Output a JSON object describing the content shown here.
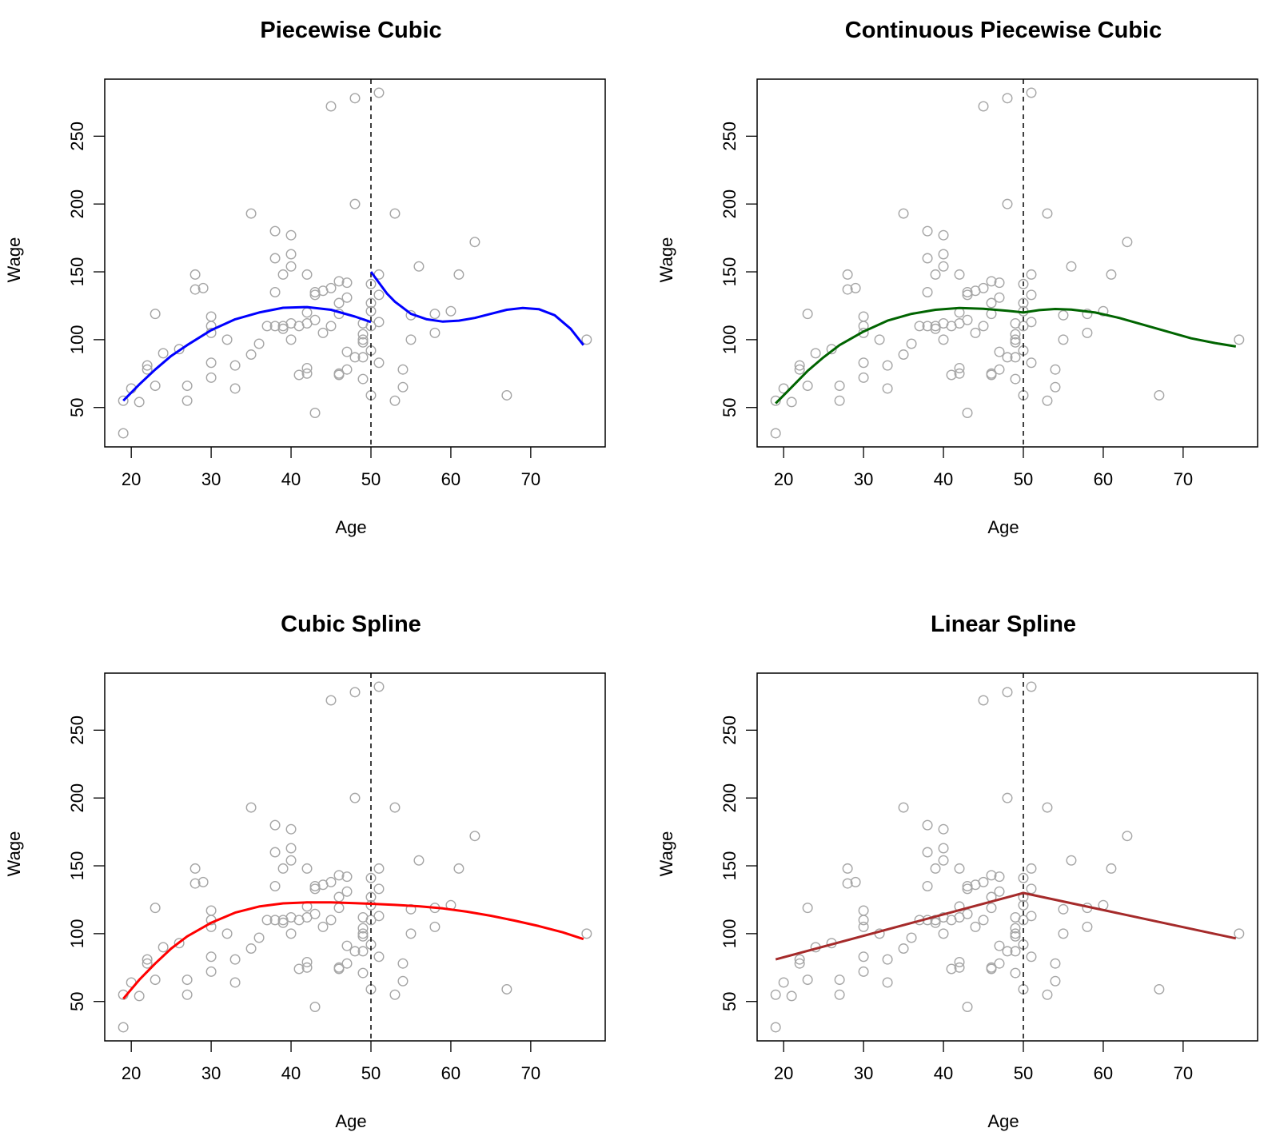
{
  "figure": {
    "point_color": "#a6a6a6",
    "knot_line_style": "dashed"
  },
  "chart_data": [
    {
      "type": "scatter",
      "title": "Piecewise Cubic",
      "xlabel": "Age",
      "ylabel": "Wage",
      "xlim": [
        16.68,
        79.32
      ],
      "ylim": [
        20.96,
        292.04
      ],
      "xticks": [
        20,
        30,
        40,
        50,
        60,
        70
      ],
      "yticks": [
        50,
        100,
        150,
        200,
        250
      ],
      "grid": false,
      "knot": 50,
      "fit": {
        "name": "piecewise cubic",
        "color": "#0000ff",
        "segments": [
          [
            [
              19,
              55
            ],
            [
              21,
              67
            ],
            [
              23,
              78
            ],
            [
              25,
              88
            ],
            [
              27,
              96
            ],
            [
              30,
              107
            ],
            [
              33,
              115
            ],
            [
              36,
              120
            ],
            [
              39,
              123.5
            ],
            [
              42,
              124
            ],
            [
              45,
              122
            ],
            [
              48,
              117
            ],
            [
              50,
              113
            ]
          ],
          [
            [
              50,
              150
            ],
            [
              51,
              142
            ],
            [
              52,
              134
            ],
            [
              53,
              128
            ],
            [
              55,
              119
            ],
            [
              57,
              115
            ],
            [
              59,
              113.3
            ],
            [
              61,
              114
            ],
            [
              63,
              116
            ],
            [
              65,
              119
            ],
            [
              67,
              122
            ],
            [
              69,
              123.4
            ],
            [
              71,
              122.5
            ],
            [
              73,
              118
            ],
            [
              75,
              108
            ],
            [
              76.6,
              96
            ]
          ]
        ]
      }
    },
    {
      "type": "scatter",
      "title": "Continuous Piecewise Cubic",
      "xlabel": "Age",
      "ylabel": "Wage",
      "xlim": [
        16.68,
        79.32
      ],
      "ylim": [
        20.96,
        292.04
      ],
      "xticks": [
        20,
        30,
        40,
        50,
        60,
        70
      ],
      "yticks": [
        50,
        100,
        150,
        200,
        250
      ],
      "grid": false,
      "knot": 50,
      "fit": {
        "name": "continuous piecewise cubic",
        "color": "#006400",
        "segments": [
          [
            [
              19,
              53
            ],
            [
              21,
              65
            ],
            [
              23,
              77
            ],
            [
              25,
              87
            ],
            [
              27,
              96
            ],
            [
              30,
              106
            ],
            [
              33,
              114
            ],
            [
              36,
              119
            ],
            [
              39,
              122
            ],
            [
              42,
              123.3
            ],
            [
              45,
              122.8
            ],
            [
              48,
              121.3
            ],
            [
              50,
              120
            ],
            [
              52,
              121.8
            ],
            [
              54,
              122.6
            ],
            [
              56,
              122.2
            ],
            [
              59,
              120
            ],
            [
              62,
              116
            ],
            [
              65,
              111
            ],
            [
              68,
              106
            ],
            [
              71,
              101
            ],
            [
              74,
              97.5
            ],
            [
              76.6,
              95
            ]
          ]
        ]
      }
    },
    {
      "type": "scatter",
      "title": "Cubic Spline",
      "xlabel": "Age",
      "ylabel": "Wage",
      "xlim": [
        16.68,
        79.32
      ],
      "ylim": [
        20.96,
        292.04
      ],
      "xticks": [
        20,
        30,
        40,
        50,
        60,
        70
      ],
      "yticks": [
        50,
        100,
        150,
        200,
        250
      ],
      "grid": false,
      "knot": 50,
      "fit": {
        "name": "cubic spline",
        "color": "#ff0000",
        "segments": [
          [
            [
              19,
              52
            ],
            [
              21,
              66
            ],
            [
              23,
              78
            ],
            [
              25,
              89
            ],
            [
              27,
              98
            ],
            [
              30,
              108
            ],
            [
              33,
              115.5
            ],
            [
              36,
              120
            ],
            [
              39,
              122.3
            ],
            [
              42,
              123
            ],
            [
              45,
              123
            ],
            [
              48,
              122.5
            ],
            [
              50,
              122
            ],
            [
              53,
              121.2
            ],
            [
              56,
              120.2
            ],
            [
              59,
              118.6
            ],
            [
              62,
              116.2
            ],
            [
              65,
              113.2
            ],
            [
              68,
              109.6
            ],
            [
              71,
              105.6
            ],
            [
              74,
              101
            ],
            [
              76.6,
              96
            ]
          ]
        ]
      }
    },
    {
      "type": "scatter",
      "title": "Linear Spline",
      "xlabel": "Age",
      "ylabel": "Wage",
      "xlim": [
        16.68,
        79.32
      ],
      "ylim": [
        20.96,
        292.04
      ],
      "xticks": [
        20,
        30,
        40,
        50,
        60,
        70
      ],
      "yticks": [
        50,
        100,
        150,
        200,
        250
      ],
      "grid": false,
      "knot": 50,
      "fit": {
        "name": "linear spline",
        "color": "#a52a2a",
        "segments": [
          [
            [
              19,
              81
            ],
            [
              50,
              130
            ],
            [
              76.6,
              96.5
            ]
          ]
        ]
      }
    }
  ],
  "points": [
    [
      19,
      31
    ],
    [
      19,
      55
    ],
    [
      20,
      64
    ],
    [
      21,
      54
    ],
    [
      22,
      81
    ],
    [
      22,
      78
    ],
    [
      23,
      119
    ],
    [
      23,
      66
    ],
    [
      24,
      90
    ],
    [
      26,
      93
    ],
    [
      27,
      66
    ],
    [
      27,
      55
    ],
    [
      28,
      148
    ],
    [
      28,
      137
    ],
    [
      29,
      138
    ],
    [
      30,
      117
    ],
    [
      30,
      110
    ],
    [
      30,
      105
    ],
    [
      30,
      83
    ],
    [
      30,
      72
    ],
    [
      32,
      100
    ],
    [
      33,
      81
    ],
    [
      33,
      64
    ],
    [
      35,
      193
    ],
    [
      35,
      89
    ],
    [
      36,
      97
    ],
    [
      37,
      110
    ],
    [
      38,
      180
    ],
    [
      38,
      160
    ],
    [
      38,
      135
    ],
    [
      38,
      110
    ],
    [
      39,
      148
    ],
    [
      39,
      110
    ],
    [
      39,
      108
    ],
    [
      40,
      177
    ],
    [
      40,
      163
    ],
    [
      40,
      154
    ],
    [
      40,
      112
    ],
    [
      40,
      100
    ],
    [
      41,
      110
    ],
    [
      41,
      74
    ],
    [
      42,
      148
    ],
    [
      42,
      120
    ],
    [
      42,
      112
    ],
    [
      42,
      79
    ],
    [
      42,
      75
    ],
    [
      43,
      135
    ],
    [
      43,
      133
    ],
    [
      43,
      114.5
    ],
    [
      43,
      46
    ],
    [
      44,
      136
    ],
    [
      44,
      105
    ],
    [
      45,
      272
    ],
    [
      45,
      138
    ],
    [
      45,
      110
    ],
    [
      46,
      143
    ],
    [
      46,
      127
    ],
    [
      46,
      119
    ],
    [
      46,
      75
    ],
    [
      46,
      74
    ],
    [
      47,
      142
    ],
    [
      47,
      131
    ],
    [
      47,
      91
    ],
    [
      47,
      78
    ],
    [
      48,
      278
    ],
    [
      48,
      200
    ],
    [
      48,
      87
    ],
    [
      49,
      112
    ],
    [
      49,
      104
    ],
    [
      49,
      100
    ],
    [
      49,
      98
    ],
    [
      49,
      87
    ],
    [
      49,
      71
    ],
    [
      50,
      141
    ],
    [
      50,
      127
    ],
    [
      50,
      121
    ],
    [
      50,
      110
    ],
    [
      50,
      92
    ],
    [
      50,
      59
    ],
    [
      51,
      282
    ],
    [
      51,
      148
    ],
    [
      51,
      133
    ],
    [
      51,
      113
    ],
    [
      51,
      83
    ],
    [
      53,
      193
    ],
    [
      53,
      55
    ],
    [
      54,
      78
    ],
    [
      54,
      65
    ],
    [
      55,
      118
    ],
    [
      55,
      100
    ],
    [
      56,
      154
    ],
    [
      58,
      119
    ],
    [
      58,
      105
    ],
    [
      60,
      121
    ],
    [
      61,
      148
    ],
    [
      63,
      172
    ],
    [
      67,
      59
    ],
    [
      77,
      100
    ]
  ]
}
